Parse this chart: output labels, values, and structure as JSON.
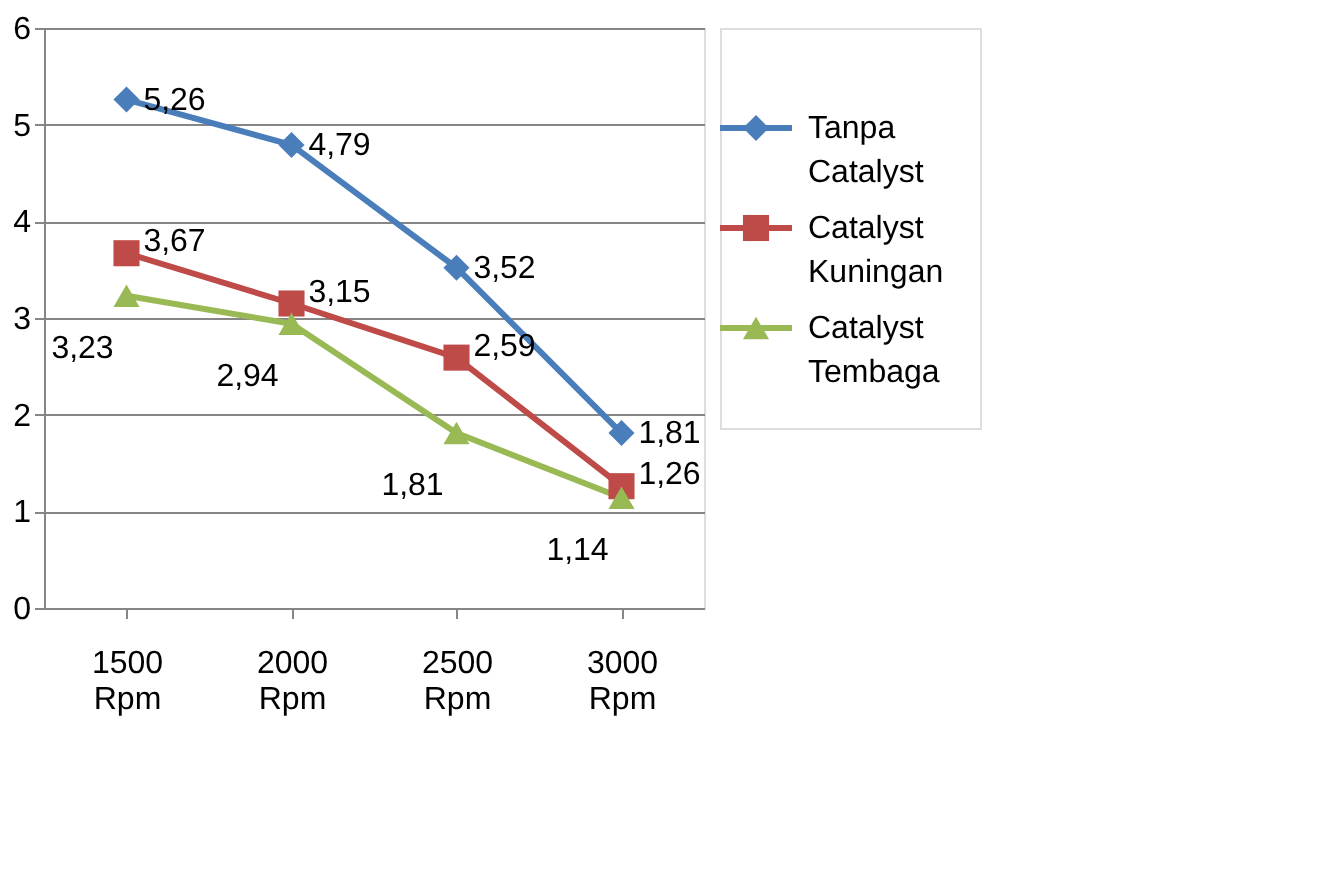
{
  "chart_data": {
    "type": "line",
    "categories": [
      "1500 Rpm",
      "2000 Rpm",
      "2500 Rpm",
      "3000 Rpm"
    ],
    "series": [
      {
        "name": "Tanpa Catalyst",
        "color": "#4a7ebb",
        "marker": "diamond",
        "values": [
          5.26,
          4.79,
          3.52,
          1.81
        ],
        "value_labels": [
          "5,26",
          "4,79",
          "3,52",
          "1,81"
        ]
      },
      {
        "name": "Catalyst Kuningan",
        "color": "#be4b48",
        "marker": "square",
        "values": [
          3.67,
          3.15,
          2.59,
          1.26
        ],
        "value_labels": [
          "3,67",
          "3,15",
          "2,59",
          "1,26"
        ]
      },
      {
        "name": "Catalyst Tembaga",
        "color": "#98b954",
        "marker": "triangle",
        "values": [
          3.23,
          2.94,
          1.81,
          1.14
        ],
        "value_labels": [
          "3,23",
          "2,94",
          "1,81",
          "1,14"
        ]
      }
    ],
    "ylim": [
      0,
      6
    ],
    "yticks": [
      0,
      1,
      2,
      3,
      4,
      5,
      6
    ],
    "grid": "y",
    "legend": "right",
    "line_style": "solid"
  }
}
